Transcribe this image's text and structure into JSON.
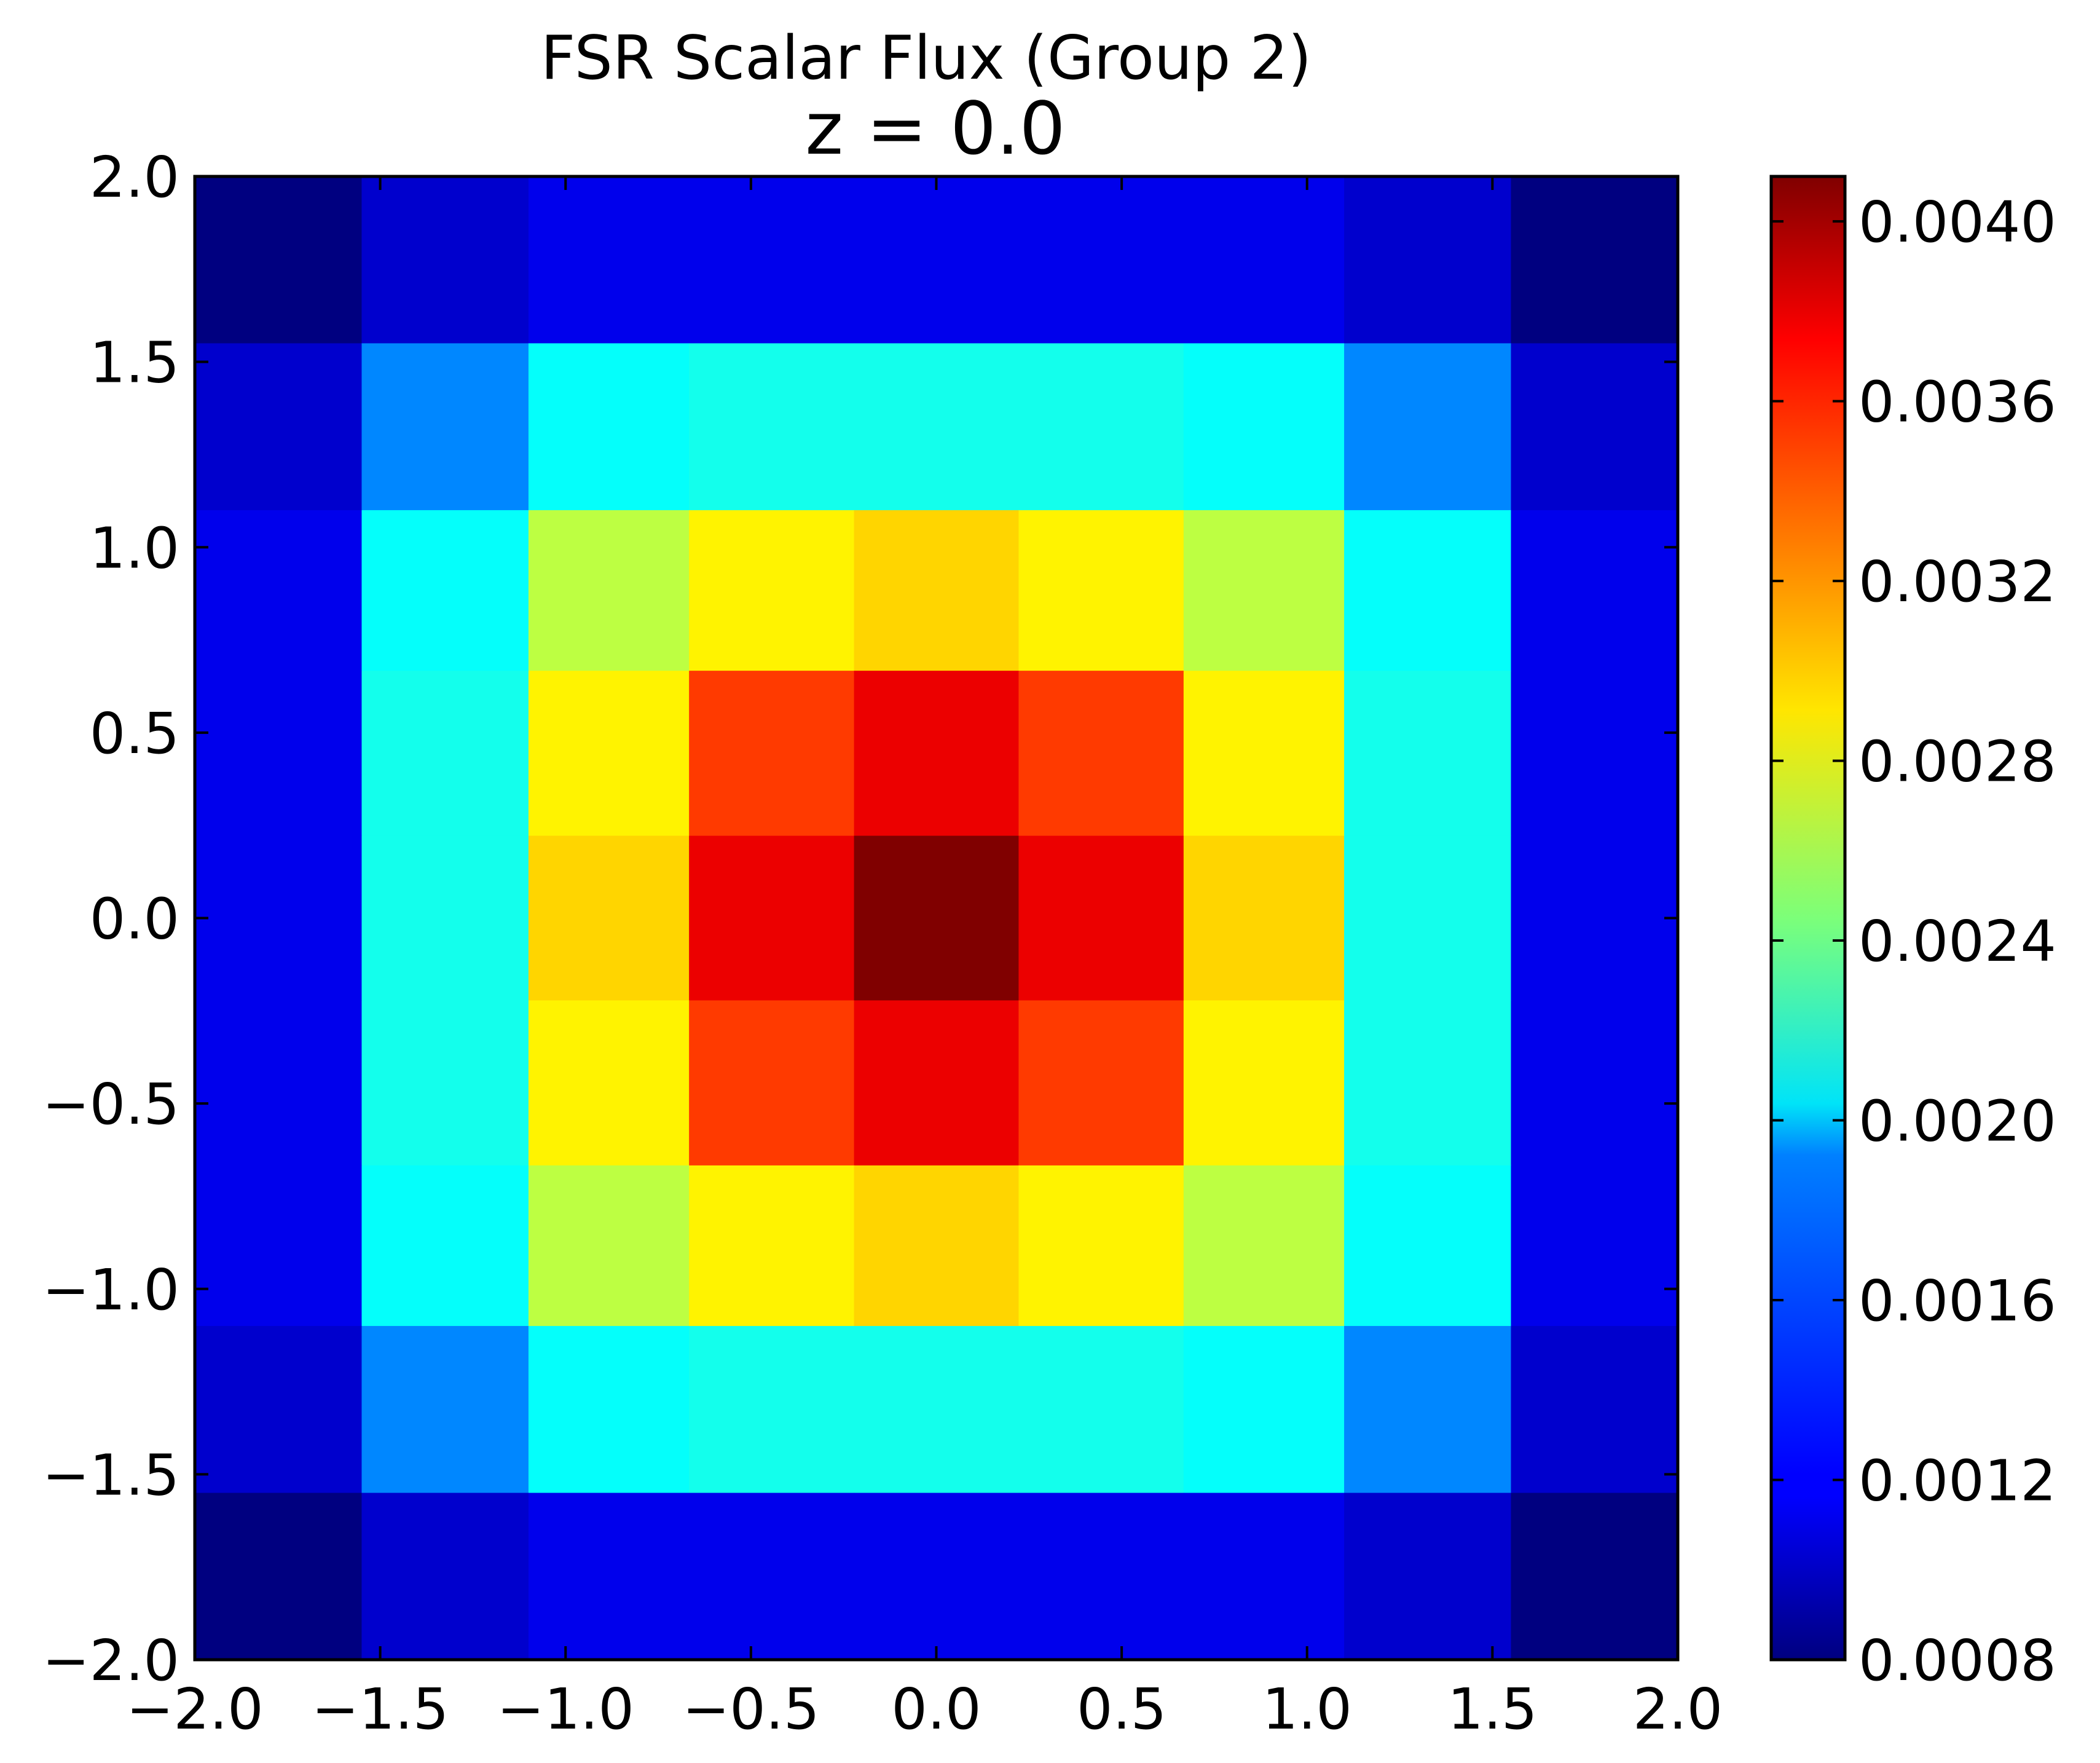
{
  "chart_data": {
    "type": "heatmap",
    "title": "FSR Scalar Flux (Group 2)",
    "subtitle": "z = 0.0",
    "xlabel": "",
    "ylabel": "",
    "xlim": [
      -2.0,
      2.0
    ],
    "ylim": [
      -2.0,
      2.0
    ],
    "x_edges": [
      -2.0,
      -1.55,
      -1.1,
      -0.667,
      -0.222,
      0.222,
      0.667,
      1.1,
      1.55,
      2.0
    ],
    "y_edges": [
      -2.0,
      -1.55,
      -1.1,
      -0.667,
      -0.222,
      0.222,
      0.667,
      1.1,
      1.55,
      2.0
    ],
    "x_ticks": [
      "−2.0",
      "−1.5",
      "−1.0",
      "−0.5",
      "0.0",
      "0.5",
      "1.0",
      "1.5",
      "2.0"
    ],
    "y_ticks": [
      "−2.0",
      "−1.5",
      "−1.0",
      "−0.5",
      "0.0",
      "0.5",
      "1.0",
      "1.5",
      "2.0"
    ],
    "values_rows_top_to_bottom": [
      [
        0.0008,
        0.00105,
        0.00115,
        0.00115,
        0.00115,
        0.00115,
        0.00115,
        0.00105,
        0.0008
      ],
      [
        0.00105,
        0.00165,
        0.00205,
        0.0021,
        0.0021,
        0.0021,
        0.00205,
        0.00165,
        0.00105
      ],
      [
        0.00115,
        0.00205,
        0.00265,
        0.0029,
        0.003,
        0.0029,
        0.00265,
        0.00205,
        0.00115
      ],
      [
        0.00115,
        0.0021,
        0.0029,
        0.0035,
        0.00375,
        0.0035,
        0.0029,
        0.0021,
        0.00115
      ],
      [
        0.00115,
        0.0021,
        0.003,
        0.00375,
        0.0041,
        0.00375,
        0.003,
        0.0021,
        0.00115
      ],
      [
        0.00115,
        0.0021,
        0.0029,
        0.0035,
        0.00375,
        0.0035,
        0.0029,
        0.0021,
        0.00115
      ],
      [
        0.00115,
        0.00205,
        0.00265,
        0.0029,
        0.003,
        0.0029,
        0.00265,
        0.00205,
        0.00115
      ],
      [
        0.00105,
        0.00165,
        0.00205,
        0.0021,
        0.0021,
        0.0021,
        0.00205,
        0.00165,
        0.00105
      ],
      [
        0.0008,
        0.00105,
        0.00115,
        0.00115,
        0.00115,
        0.00115,
        0.00115,
        0.00105,
        0.0008
      ]
    ],
    "colorbar": {
      "colormap": "jet",
      "vmin": 0.0008,
      "vmax": 0.0041,
      "ticks": [
        0.0008,
        0.0012,
        0.0016,
        0.002,
        0.0024,
        0.0028,
        0.0032,
        0.0036,
        0.004
      ],
      "tick_labels": [
        "0.0008",
        "0.0012",
        "0.0016",
        "0.0020",
        "0.0024",
        "0.0028",
        "0.0032",
        "0.0036",
        "0.0040"
      ]
    },
    "grid": false,
    "legend": "none"
  }
}
